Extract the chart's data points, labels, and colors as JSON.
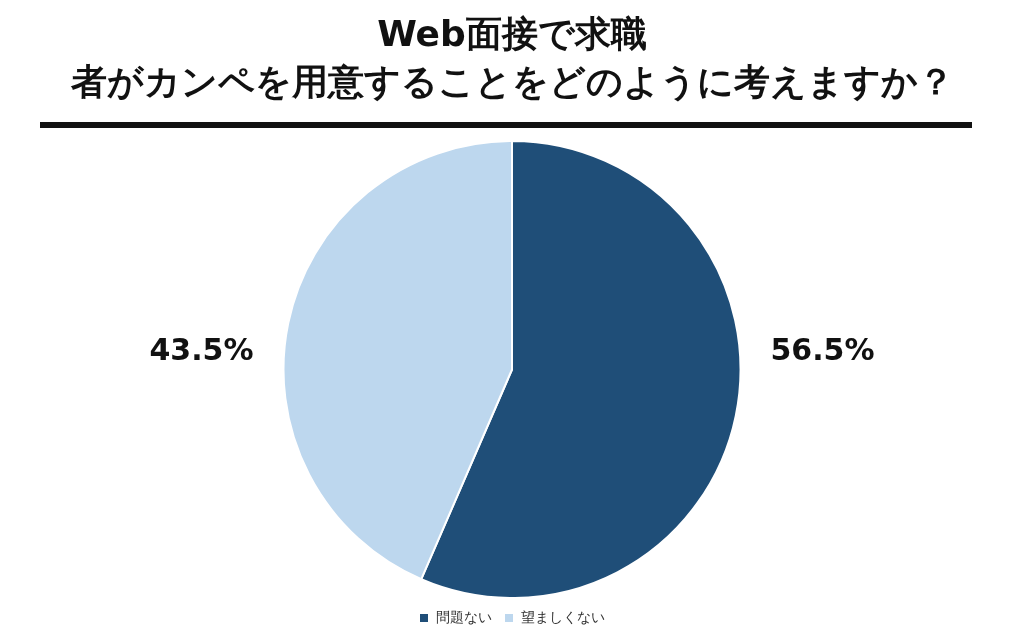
{
  "chart_data": {
    "type": "pie",
    "title": "Web面接で求職者がカンペを用意することをどのように考えますか？",
    "categories": [
      "問題ない",
      "望ましくない"
    ],
    "values": [
      56.5,
      43.5
    ],
    "colors": [
      "#1f4e78",
      "#bdd7ee"
    ],
    "value_labels": [
      "56.5%",
      "43.5%"
    ],
    "legend": "bottom"
  }
}
